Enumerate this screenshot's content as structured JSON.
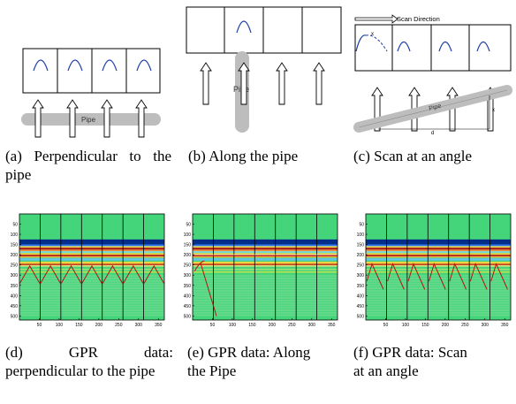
{
  "panels": {
    "a": {
      "pipe_label": "Pipe",
      "caption": "(a) Perpendicular to the pipe"
    },
    "b": {
      "pipe_label": "Pipe",
      "caption": "(b) Along the pipe"
    },
    "c": {
      "scan_direction_label": "Scan Direction",
      "x_label": "x",
      "d_label": "d",
      "pipe_label": "Pipe",
      "caption": "(c) Scan at an angle"
    },
    "d": {
      "caption_line1": "(d) GPR data:",
      "caption_rest": "perpendicular to the pipe"
    },
    "e": {
      "caption_line1": "(e) GPR data: Along",
      "caption_rest": "the Pipe"
    },
    "f": {
      "caption_line1": "(f) GPR data: Scan",
      "caption_rest": "at an angle"
    }
  },
  "gpr_axes": {
    "y_ticks": [
      "50",
      "100",
      "150",
      "200",
      "250",
      "300",
      "350",
      "400",
      "450",
      "500"
    ],
    "x_ticks": [
      "50",
      "100",
      "150",
      "200",
      "250",
      "300",
      "350"
    ]
  },
  "colors": {
    "background_field": "#44d47a",
    "deep_blue": "#00208c",
    "hyperbola_red": "#b81010",
    "pipe_gray": "#bdbdbd",
    "curve_blue": "#1e3fa8"
  }
}
